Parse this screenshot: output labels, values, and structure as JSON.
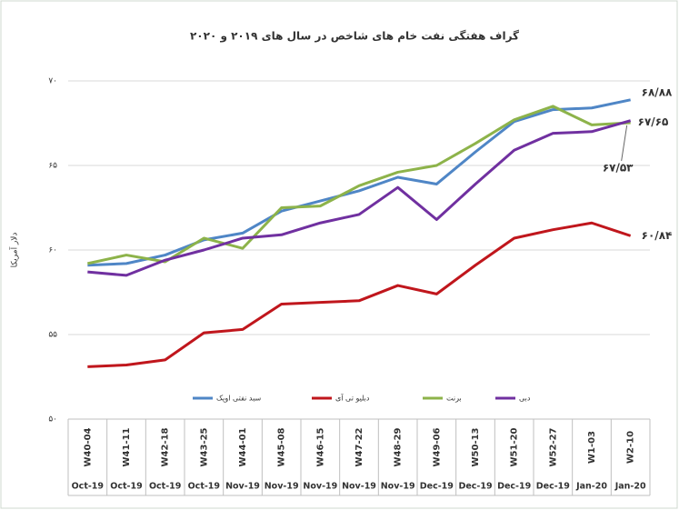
{
  "chart_data": {
    "type": "line",
    "title": "گراف هفتگی نفت خام های شاخص در سال های ۲۰۱۹ و ۲۰۲۰",
    "y_label": "دلار آمریکا",
    "categories": [
      "W40-04",
      "W41-11",
      "W42-18",
      "W43-25",
      "W44-01",
      "W45-08",
      "W46-15",
      "W47-22",
      "W48-29",
      "W49-06",
      "W50-13",
      "W51-20",
      "W52-27",
      "W1-03",
      "W2-10"
    ],
    "months": [
      "Oct-19",
      "Oct-19",
      "Oct-19",
      "Oct-19",
      "Nov-19",
      "Nov-19",
      "Nov-19",
      "Nov-19",
      "Nov-19",
      "Dec-19",
      "Dec-19",
      "Dec-19",
      "Dec-19",
      "Jan-20",
      "Jan-20"
    ],
    "series": [
      {
        "name": "سبد نفتی اوپک",
        "color": "#4f86c6",
        "values": [
          59.1,
          59.2,
          59.7,
          60.6,
          61.0,
          62.3,
          62.9,
          63.5,
          64.3,
          63.9,
          65.8,
          67.6,
          68.3,
          68.4,
          68.88
        ],
        "value_labels": [
          null,
          null,
          null,
          null,
          null,
          null,
          null,
          null,
          null,
          null,
          null,
          null,
          null,
          null,
          "۶۸/۸۸"
        ]
      },
      {
        "name": "دبلیو تی آی",
        "color": "#c0161c",
        "values": [
          53.1,
          53.2,
          53.5,
          55.1,
          55.3,
          56.8,
          56.9,
          57.0,
          57.9,
          57.4,
          59.1,
          60.7,
          61.2,
          61.6,
          60.84
        ],
        "value_labels": [
          null,
          null,
          null,
          null,
          null,
          null,
          null,
          null,
          null,
          null,
          null,
          null,
          null,
          null,
          "۶۰/۸۴"
        ]
      },
      {
        "name": "برنت",
        "color": "#8db34a",
        "values": [
          59.2,
          59.7,
          59.3,
          60.7,
          60.1,
          62.5,
          62.6,
          63.8,
          64.6,
          65.0,
          66.3,
          67.7,
          68.5,
          67.4,
          67.53
        ],
        "value_labels": [
          null,
          null,
          null,
          null,
          null,
          null,
          null,
          null,
          null,
          null,
          null,
          null,
          null,
          null,
          "۶۷/۵۳"
        ]
      },
      {
        "name": "دبی",
        "color": "#7030a0",
        "values": [
          58.7,
          58.5,
          59.4,
          60.0,
          60.7,
          60.9,
          61.6,
          62.1,
          63.7,
          61.8,
          63.9,
          65.9,
          66.9,
          67.0,
          67.65
        ],
        "value_labels": [
          null,
          null,
          null,
          null,
          null,
          null,
          null,
          null,
          null,
          null,
          null,
          null,
          null,
          null,
          "۶۷/۶۵"
        ]
      }
    ],
    "ylim": [
      50,
      70
    ],
    "yticks": [
      {
        "value": 50,
        "label": "۵۰"
      },
      {
        "value": 55,
        "label": "۵۵"
      },
      {
        "value": 60,
        "label": "۶۰"
      },
      {
        "value": 65,
        "label": "۶۵"
      },
      {
        "value": 70,
        "label": "۷۰"
      }
    ],
    "grid": true,
    "legend": "bottom"
  }
}
